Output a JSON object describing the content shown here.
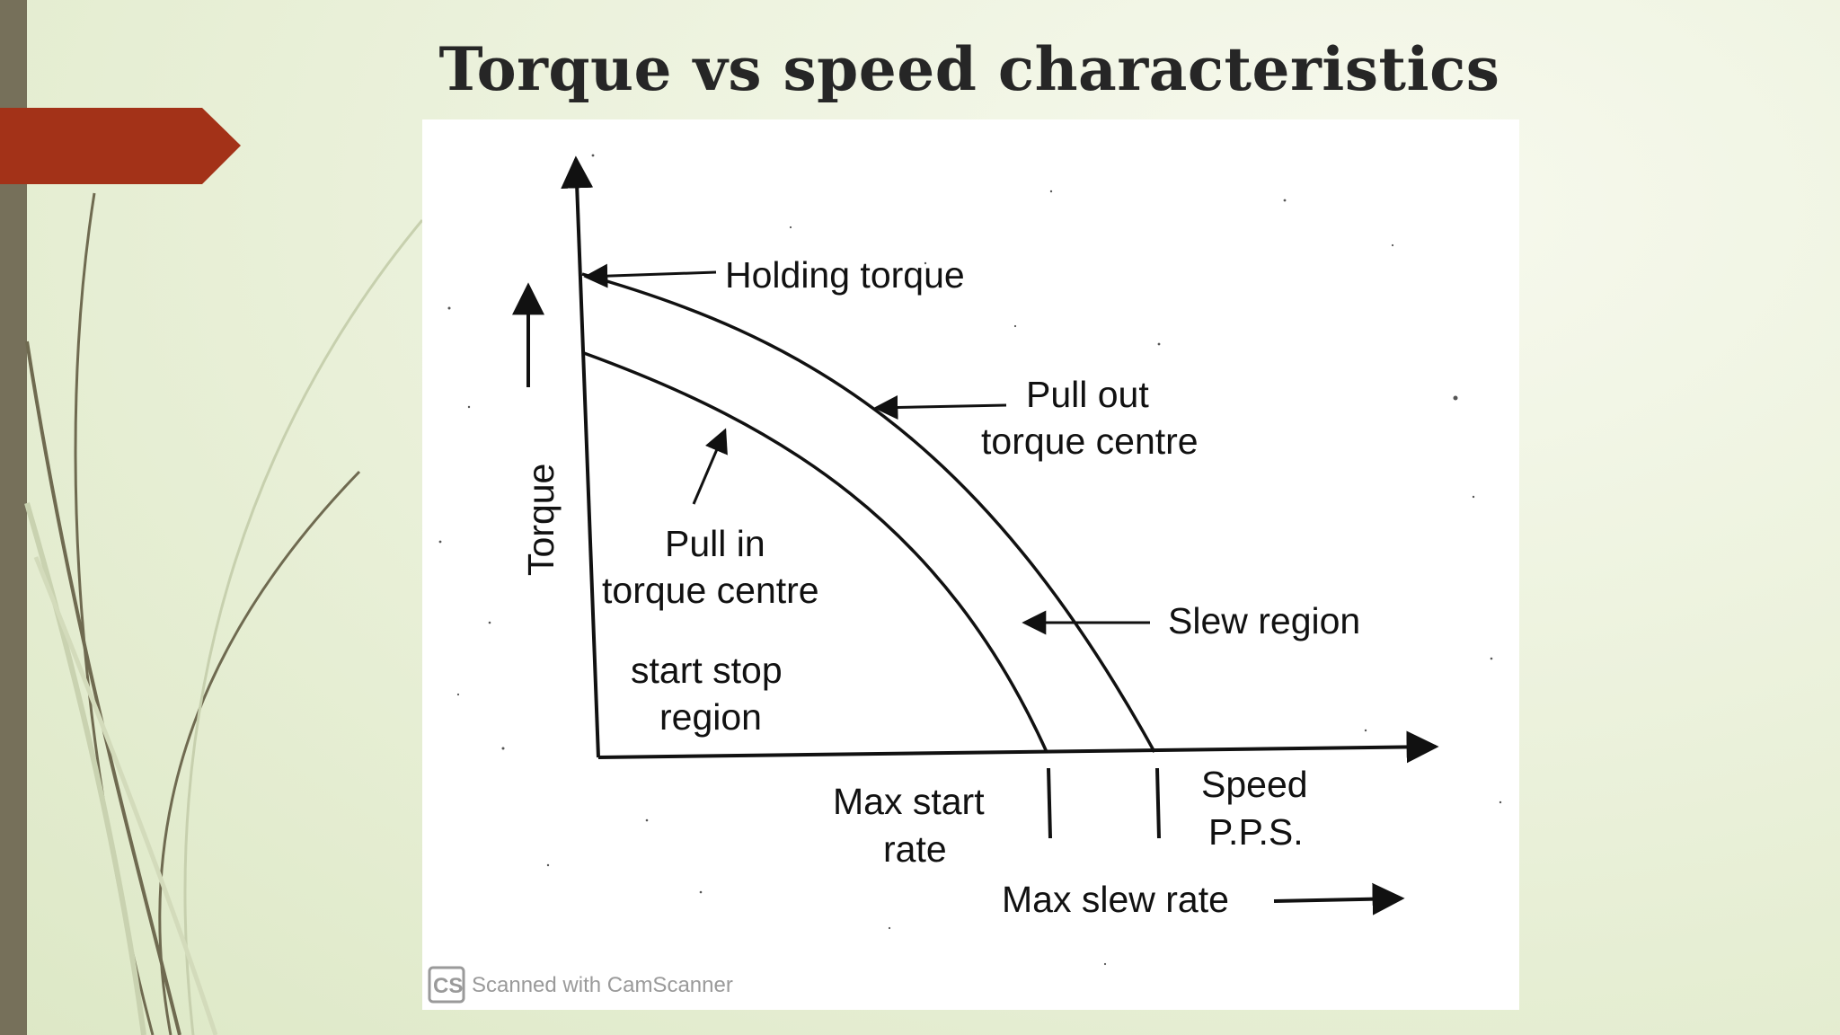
{
  "slide": {
    "title": "Torque vs speed characteristics",
    "accent_color": "#a33218",
    "sidebar_color": "#76705a"
  },
  "diagram": {
    "y_axis_label": "Torque",
    "holding_torque_label": "Holding torque",
    "pull_out_line1": "Pull out",
    "pull_out_line2": "torque centre",
    "pull_in_line1": "Pull in",
    "pull_in_line2": "torque centre",
    "start_stop_line1": "start stop",
    "start_stop_line2": "region",
    "slew_region_label": "Slew region",
    "max_start_line1": "Max start",
    "max_start_line2": "rate",
    "speed_line1": "Speed",
    "speed_line2": "P.P.S.",
    "max_slew_label": "Max slew rate"
  },
  "watermark": {
    "logo": "CS",
    "text": "Scanned with CamScanner"
  }
}
